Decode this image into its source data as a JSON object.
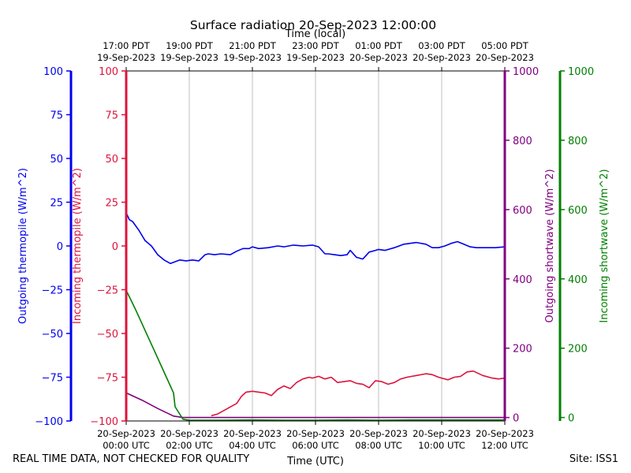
{
  "chart_data": {
    "type": "line",
    "title": "Surface radiation 20-Sep-2023 12:00:00",
    "top_axis_title": "Time (local)",
    "xlabel": "Time (UTC)",
    "x_hours": [
      0,
      2,
      4,
      6,
      8,
      10,
      12
    ],
    "x_ticks_utc": [
      [
        "20-Sep-2023",
        "00:00 UTC"
      ],
      [
        "20-Sep-2023",
        "02:00 UTC"
      ],
      [
        "20-Sep-2023",
        "04:00 UTC"
      ],
      [
        "20-Sep-2023",
        "06:00 UTC"
      ],
      [
        "20-Sep-2023",
        "08:00 UTC"
      ],
      [
        "20-Sep-2023",
        "10:00 UTC"
      ],
      [
        "20-Sep-2023",
        "12:00 UTC"
      ]
    ],
    "x_ticks_local": [
      [
        "17:00 PDT",
        "19-Sep-2023"
      ],
      [
        "19:00 PDT",
        "19-Sep-2023"
      ],
      [
        "21:00 PDT",
        "19-Sep-2023"
      ],
      [
        "23:00 PDT",
        "19-Sep-2023"
      ],
      [
        "01:00 PDT",
        "20-Sep-2023"
      ],
      [
        "03:00 PDT",
        "20-Sep-2023"
      ],
      [
        "05:00 PDT",
        "20-Sep-2023"
      ]
    ],
    "xlim": [
      0,
      12
    ],
    "axes": {
      "outgoing_thermopile": {
        "label": "Outgoing thermopile (W/m^2)",
        "color": "#0000ee",
        "ylim": [
          -100,
          100
        ],
        "ticks": [
          100,
          75,
          50,
          25,
          0,
          -25,
          -50,
          -75,
          -100
        ]
      },
      "incoming_thermopile": {
        "label": "Incoming thermopile (W/m^2)",
        "color": "#dc143c",
        "ylim": [
          -100,
          100
        ],
        "ticks": [
          100,
          75,
          50,
          25,
          0,
          -25,
          -50,
          -75,
          -100
        ]
      },
      "outgoing_shortwave": {
        "label": "Outgoing shortwave (W/m^2)",
        "color": "#800080",
        "ylim": [
          -10,
          1000
        ],
        "ticks": [
          1000,
          800,
          600,
          400,
          200,
          0
        ]
      },
      "incoming_shortwave": {
        "label": "Incoming shortwave (W/m^2)",
        "color": "#008000",
        "ylim": [
          -10,
          1000
        ],
        "ticks": [
          1000,
          800,
          600,
          400,
          200,
          0
        ]
      }
    },
    "series": [
      {
        "name": "Outgoing thermopile",
        "axis": "outgoing_thermopile",
        "color": "#0000ee",
        "x": [
          0,
          0.1,
          0.2,
          0.4,
          0.6,
          0.8,
          1.0,
          1.2,
          1.4,
          1.55,
          1.7,
          1.9,
          2.1,
          2.3,
          2.5,
          2.6,
          2.8,
          3.0,
          3.3,
          3.5,
          3.7,
          3.9,
          4.0,
          4.2,
          4.5,
          4.8,
          5.0,
          5.3,
          5.6,
          5.9,
          6.1,
          6.3,
          6.4,
          6.6,
          6.8,
          7.0,
          7.1,
          7.3,
          7.5,
          7.7,
          7.9,
          8.0,
          8.2,
          8.5,
          8.8,
          9.0,
          9.2,
          9.5,
          9.7,
          9.9,
          10.1,
          10.3,
          10.5,
          10.7,
          10.9,
          11.1,
          11.4,
          11.7,
          12.0
        ],
        "y": [
          19,
          15,
          14,
          9,
          3,
          0,
          -5,
          -8,
          -10,
          -9,
          -8,
          -8.5,
          -8,
          -8.5,
          -5,
          -4.5,
          -5,
          -4.5,
          -5,
          -3,
          -1.5,
          -1.5,
          -0.5,
          -1.5,
          -1,
          0,
          -0.5,
          0.5,
          0,
          0.5,
          -0.5,
          -4.5,
          -4.5,
          -5,
          -5.5,
          -5,
          -2.5,
          -6.5,
          -7.5,
          -3.5,
          -2.5,
          -2,
          -2.5,
          -1,
          1,
          1.5,
          2,
          1,
          -1,
          -1,
          0,
          1.5,
          2.5,
          1,
          -0.5,
          -1,
          -1,
          -1,
          -0.5
        ]
      },
      {
        "name": "Incoming thermopile",
        "axis": "incoming_thermopile",
        "color": "#dc143c",
        "x": [
          2.7,
          2.9,
          3.1,
          3.3,
          3.5,
          3.65,
          3.8,
          4.0,
          4.2,
          4.4,
          4.6,
          4.8,
          5.0,
          5.2,
          5.4,
          5.6,
          5.8,
          5.9,
          6.1,
          6.3,
          6.5,
          6.7,
          6.9,
          7.1,
          7.3,
          7.5,
          7.7,
          7.9,
          8.1,
          8.3,
          8.5,
          8.7,
          8.9,
          9.2,
          9.5,
          9.7,
          9.9,
          10.2,
          10.4,
          10.6,
          10.8,
          11.0,
          11.3,
          11.6,
          11.8,
          12.0
        ],
        "y": [
          -97,
          -96,
          -94,
          -92,
          -90,
          -86,
          -83.5,
          -83,
          -83.5,
          -84,
          -85.5,
          -82,
          -80,
          -81.5,
          -78,
          -76,
          -75,
          -75.5,
          -74.5,
          -76,
          -75,
          -78,
          -77.5,
          -77,
          -78.5,
          -79,
          -81,
          -77,
          -77.5,
          -79,
          -78,
          -76,
          -75,
          -74,
          -73,
          -73.5,
          -75,
          -76.5,
          -75,
          -74.5,
          -72,
          -71.5,
          -74,
          -75.5,
          -76,
          -75.5
        ]
      },
      {
        "name": "Outgoing shortwave",
        "axis": "outgoing_shortwave",
        "color": "#800080",
        "x": [
          0,
          0.5,
          1.0,
          1.5,
          1.8,
          2.0,
          3.0,
          4.0,
          5.0,
          6.0,
          7.0,
          8.0,
          9.0,
          10.0,
          11.0,
          12.0
        ],
        "y": [
          71,
          50,
          26,
          4,
          0,
          0,
          0,
          0,
          0,
          0,
          0,
          0,
          0,
          0,
          0,
          0
        ]
      },
      {
        "name": "Incoming shortwave",
        "axis": "incoming_shortwave",
        "color": "#008000",
        "x": [
          0,
          0.3,
          0.6,
          0.9,
          1.2,
          1.5,
          1.55,
          1.8,
          2.0,
          3.0,
          4.0,
          5.0,
          6.0,
          7.0,
          8.0,
          9.0,
          10.0,
          11.0,
          12.0
        ],
        "y": [
          367,
          311,
          251,
          191,
          131,
          71,
          31,
          -5,
          -8,
          -8,
          -7,
          -8,
          -8,
          -7,
          -8,
          -7,
          -7,
          -7,
          -7
        ]
      }
    ],
    "grid": "vertical only"
  },
  "footer": {
    "disclaimer": "REAL TIME DATA, NOT CHECKED FOR QUALITY",
    "site": "Site: ISS1"
  }
}
